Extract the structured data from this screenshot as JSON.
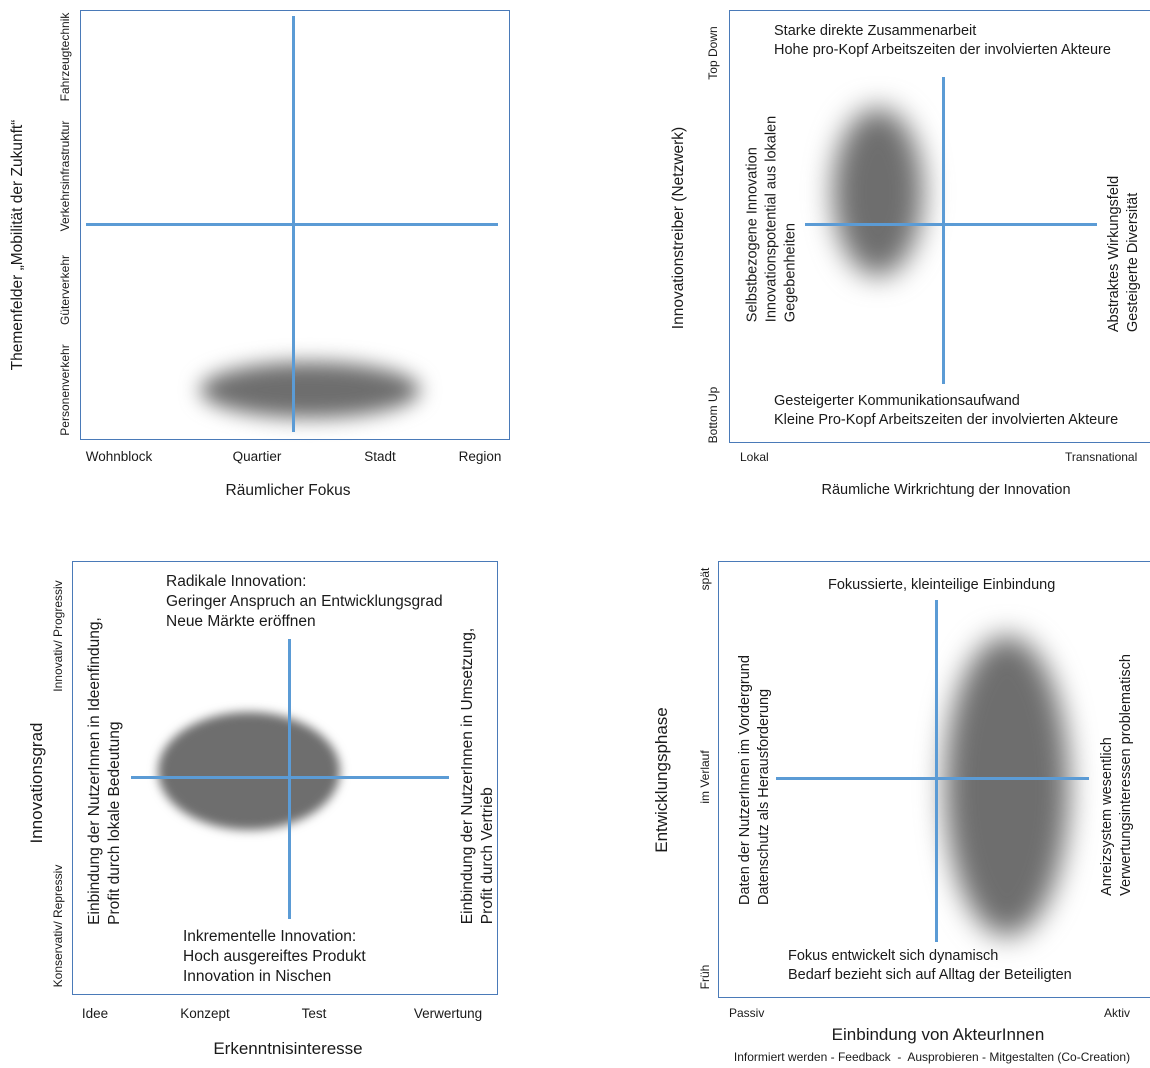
{
  "panel1": {
    "y_axis_title": "Themenfelder „Mobilität der Zukunft“",
    "y_categories": [
      "Fahrzeugtechnik",
      "Verkehrsinfrastruktur",
      "Güterverkehr",
      "Personenverkehr"
    ],
    "x_categories": [
      "Wohnblock",
      "Quartier",
      "Stadt",
      "Region"
    ],
    "x_axis_title": "Räumlicher Fokus"
  },
  "panel2": {
    "y_axis_title": "Innovationstreiber (Netzwerk)",
    "y_top": "Top Down",
    "y_bottom": "Bottom Up",
    "x_left": "Lokal",
    "x_right": "Transnational",
    "x_axis_title": "Räumliche Wirkrichtung der Innovation",
    "top_text": "Starke direkte Zusammenarbeit\nHohe pro-Kopf Arbeitszeiten der involvierten Akteure",
    "bottom_text": "Gesteigerter Kommunikationsaufwand\nKleine Pro-Kopf Arbeitszeiten der involvierten Akteure",
    "left_text": "Selbstbezogene Innovation\nInnovationspotential aus lokalen\nGegebenheiten",
    "right_text": "Abstraktes Wirkungsfeld\nGesteigerte Diversität"
  },
  "panel3": {
    "y_axis_title": "Innovationsgrad",
    "y_top": "Innovativ/ Progressiv",
    "y_bottom": "Konservativ/ Repressiv",
    "x_categories": [
      "Idee",
      "Konzept",
      "Test",
      "Verwertung"
    ],
    "x_axis_title": "Erkenntnisinteresse",
    "top_text": "Radikale Innovation:\nGeringer Anspruch an Entwicklungsgrad\nNeue Märkte eröffnen",
    "bottom_text": "Inkrementelle Innovation:\nHoch ausgereiftes Produkt\nInnovation in Nischen",
    "left_text": "Einbindung der NutzerInnen in Ideenfindung,\nProfit durch lokale Bedeutung",
    "right_text": "Einbindung der NutzerInnen in Umsetzung,\nProfit durch Vertrieb"
  },
  "panel4": {
    "y_axis_title": "Entwicklungsphase",
    "y_top": "spät",
    "y_middle": "im Verlauf",
    "y_bottom": "Früh",
    "x_left": "Passiv",
    "x_right": "Aktiv",
    "x_axis_title": "Einbindung von AkteurInnen",
    "x_axis_subtitle": "Informiert werden - Feedback  -  Ausprobieren - Mitgestalten (Co-Creation)",
    "top_text": "Fokussierte, kleinteilige Einbindung",
    "bottom_text": "Fokus entwickelt sich dynamisch\nBedarf bezieht sich auf Alltag der Beteiligten",
    "left_text": "Daten der NutzerInnen im Vordergrund\nDatenschutz als Herausforderung",
    "right_text": "Anreizsystem wesentlich\nVerwertungsinteressen problematisch"
  }
}
